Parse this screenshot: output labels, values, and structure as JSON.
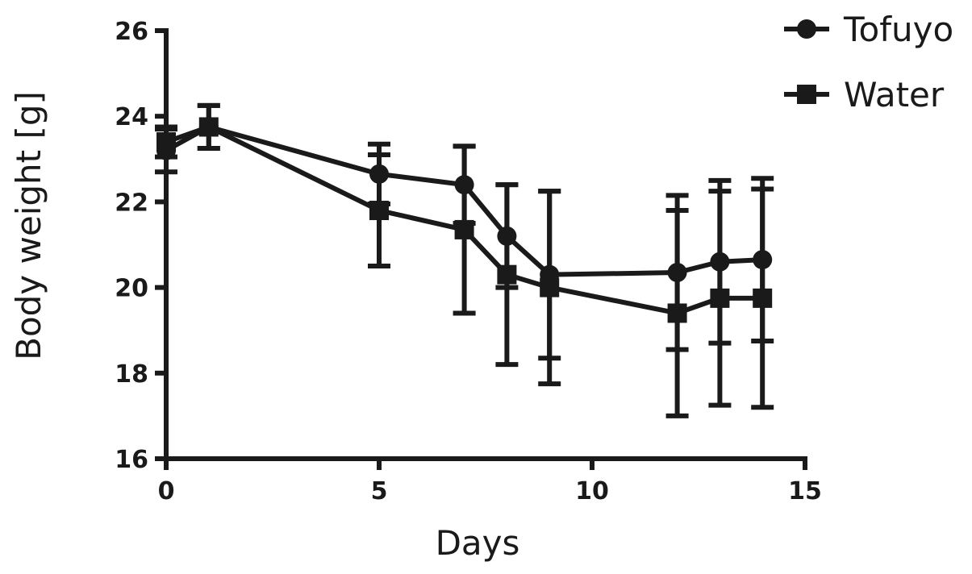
{
  "chart_data": {
    "type": "line",
    "xlabel": "Days",
    "ylabel": "Body weight  [g]",
    "xlim": [
      0,
      15
    ],
    "ylim": [
      16,
      26
    ],
    "xticks": [
      0,
      5,
      10,
      15
    ],
    "yticks": [
      16,
      18,
      20,
      22,
      24,
      26
    ],
    "grid": false,
    "legend_position": "top-right",
    "series": [
      {
        "name": "Tofuyo",
        "marker": "circle",
        "x": [
          0,
          1,
          5,
          7,
          8,
          9,
          12,
          13,
          14
        ],
        "y": [
          23.2,
          23.75,
          22.65,
          22.4,
          21.2,
          20.3,
          20.35,
          20.6,
          20.65
        ],
        "err": [
          0.5,
          0.5,
          0.7,
          0.9,
          1.2,
          1.95,
          1.8,
          1.9,
          1.9
        ]
      },
      {
        "name": "Water",
        "marker": "square",
        "x": [
          0,
          1,
          5,
          7,
          8,
          9,
          12,
          13,
          14
        ],
        "y": [
          23.4,
          23.75,
          21.8,
          21.35,
          20.3,
          20.0,
          19.4,
          19.75,
          19.75
        ],
        "err": [
          0.35,
          0.5,
          1.3,
          1.95,
          2.1,
          2.25,
          2.4,
          2.5,
          2.55
        ]
      }
    ]
  }
}
